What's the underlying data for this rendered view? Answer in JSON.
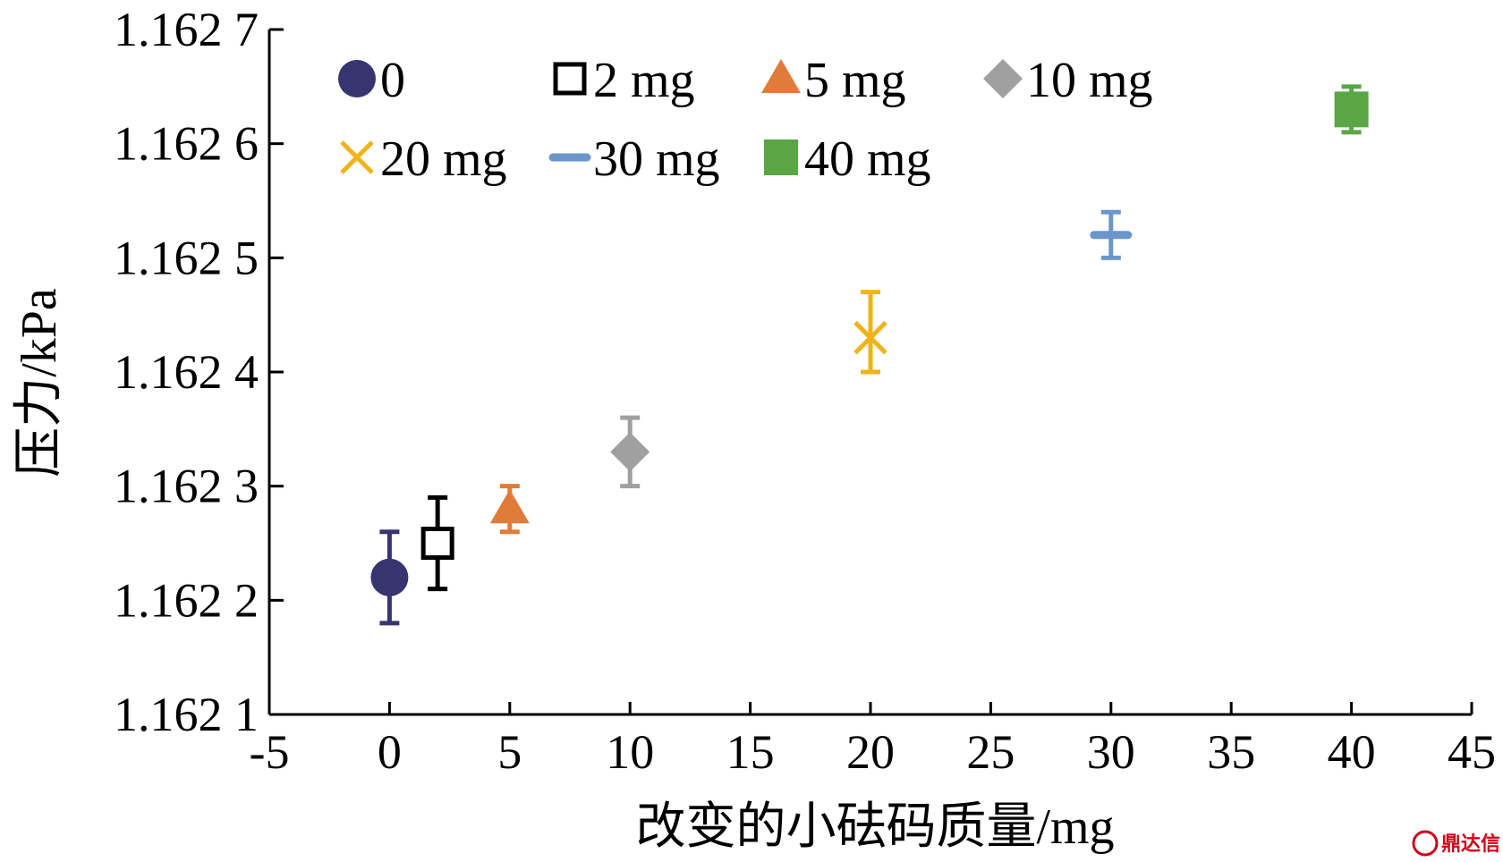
{
  "chart_data": {
    "type": "scatter",
    "xlabel": "改变的小砝码质量/mg",
    "ylabel": "压力/kPa",
    "xlim": [
      -5,
      45
    ],
    "ylim": [
      1.1621,
      1.1627
    ],
    "x_ticks": [
      -5,
      0,
      5,
      10,
      15,
      20,
      25,
      30,
      35,
      40,
      45
    ],
    "x_tick_labels": [
      "-5",
      "0",
      "5",
      "10",
      "15",
      "20",
      "25",
      "30",
      "35",
      "40",
      "45"
    ],
    "y_ticks": [
      1.1621,
      1.1622,
      1.1623,
      1.1624,
      1.1625,
      1.1626,
      1.1627
    ],
    "y_tick_labels": [
      "1.162 1",
      "1.162 2",
      "1.162 3",
      "1.162 4",
      "1.162 5",
      "1.162 6",
      "1.162 7"
    ],
    "grid": false,
    "legend_position": "top-left",
    "series": [
      {
        "name": "0",
        "marker": "circle",
        "color": "#36356f",
        "x": 0,
        "y": 1.16622,
        "err_low": 1.16618,
        "err_high": 1.16626
      },
      {
        "name": "2 mg",
        "marker": "square-open",
        "color": "#000000",
        "x": 2,
        "y": 1.16625,
        "err_low": 1.16621,
        "err_high": 1.16629
      },
      {
        "name": "5 mg",
        "marker": "triangle",
        "color": "#e07b39",
        "x": 5,
        "y": 1.16628,
        "err_low": 1.16626,
        "err_high": 1.1663
      },
      {
        "name": "10 mg",
        "marker": "diamond",
        "color": "#a0a0a0",
        "x": 10,
        "y": 1.16633,
        "err_low": 1.1663,
        "err_high": 1.16636
      },
      {
        "name": "20 mg",
        "marker": "x",
        "color": "#f0b418",
        "x": 20,
        "y": 1.16643,
        "err_low": 1.1664,
        "err_high": 1.16647
      },
      {
        "name": "30 mg",
        "marker": "dash",
        "color": "#6b96cc",
        "x": 30,
        "y": 1.16652,
        "err_low": 1.1665,
        "err_high": 1.16654
      },
      {
        "name": "40 mg",
        "marker": "square",
        "color": "#5aa646",
        "x": 40,
        "y": 1.16663,
        "err_low": 1.16661,
        "err_high": 1.16665
      }
    ]
  },
  "watermark": {
    "text": "鼎达信",
    "color": "#d0021b"
  }
}
